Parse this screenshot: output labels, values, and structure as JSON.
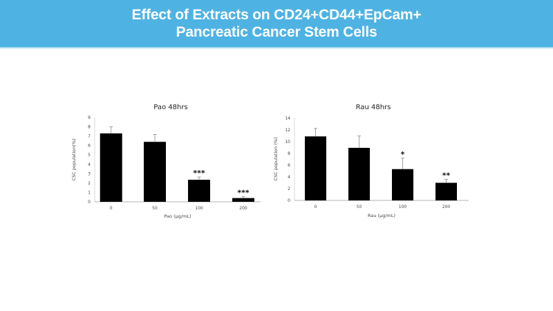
{
  "header": {
    "title_line1": "Effect of Extracts on CD24+CD44+EpCam+",
    "title_line2": "Pancreatic Cancer Stem Cells",
    "color": "#4eb3e3"
  },
  "chart_data": [
    {
      "type": "bar",
      "title": "Pao 48hrs",
      "xlabel": "Pao (μg/mL)",
      "ylabel": "CSC population(%)",
      "categories": [
        "0",
        "50",
        "100",
        "200"
      ],
      "values": [
        7.3,
        6.4,
        2.35,
        0.4
      ],
      "error_upper": [
        8.0,
        7.2,
        2.65,
        0.55
      ],
      "significance": [
        "",
        "",
        "***",
        "***"
      ],
      "ylim": [
        0,
        9
      ],
      "yticks": [
        "0",
        "1",
        "2",
        "3",
        "4",
        "5",
        "6",
        "7",
        "8",
        "9"
      ],
      "grid": false,
      "bar_color": "#000000"
    },
    {
      "type": "bar",
      "title": "Rau 48hrs",
      "xlabel": "Rau (μg/mL)",
      "ylabel": "CSC population (%)",
      "categories": [
        "0",
        "50",
        "100",
        "200"
      ],
      "values": [
        10.9,
        8.95,
        5.33,
        3.0
      ],
      "error_upper": [
        12.25,
        10.97,
        7.2,
        3.58
      ],
      "significance": [
        "",
        "",
        "*",
        "**"
      ],
      "ylim": [
        0,
        14
      ],
      "yticks": [
        "0",
        "2",
        "4",
        "6",
        "8",
        "10",
        "12",
        "14"
      ],
      "grid": false,
      "bar_color": "#000000"
    }
  ]
}
